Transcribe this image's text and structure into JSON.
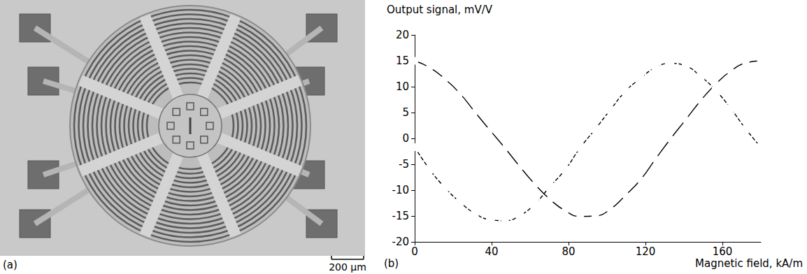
{
  "panel_a": {
    "label": "(a)",
    "scale_bar": "200 μm"
  },
  "chart_data": {
    "type": "line",
    "panel_label": "(b)",
    "ylabel": "Output signal, mV/V",
    "xlabel": "Magnetic field, kA/m",
    "x": [
      0,
      7.8,
      15.7,
      23.5,
      31.3,
      39.1,
      47,
      54.8,
      62.6,
      70.4,
      78.3,
      86.1,
      93.9,
      101.7,
      109.6,
      117.4,
      125.2,
      133,
      140.9,
      148.7,
      156.5,
      164.3,
      172.2,
      180
    ],
    "series": [
      {
        "color": "#000000",
        "marker": "circle",
        "line_style": "solid",
        "values": [
          15,
          13.7,
          11.5,
          8.7,
          5.1,
          1.6,
          -1.9,
          -5.5,
          -8.9,
          -11.8,
          -14,
          -15.1,
          -15,
          -13.7,
          -11,
          -8,
          -4,
          -0.1,
          3.6,
          7.3,
          10.5,
          13,
          14.6,
          15
        ]
      },
      {
        "color": "#000000",
        "marker": "square",
        "line_style": "dashed",
        "values": [
          -1.7,
          -6,
          -9.5,
          -12.3,
          -14.5,
          -15.7,
          -15.9,
          -14.9,
          -12.6,
          -9.3,
          -6,
          -1.8,
          1.8,
          5.5,
          9.1,
          11.6,
          13.7,
          14.5,
          14,
          12,
          9.3,
          5.8,
          1.8,
          -1.7
        ]
      }
    ],
    "xlim": [
      0,
      180
    ],
    "xticks": [
      0,
      40,
      80,
      120,
      160
    ],
    "ylim": [
      -20,
      20
    ],
    "yticks": [
      -20,
      -15,
      -10,
      -5,
      0,
      5,
      10,
      15,
      20
    ],
    "grid": false
  }
}
